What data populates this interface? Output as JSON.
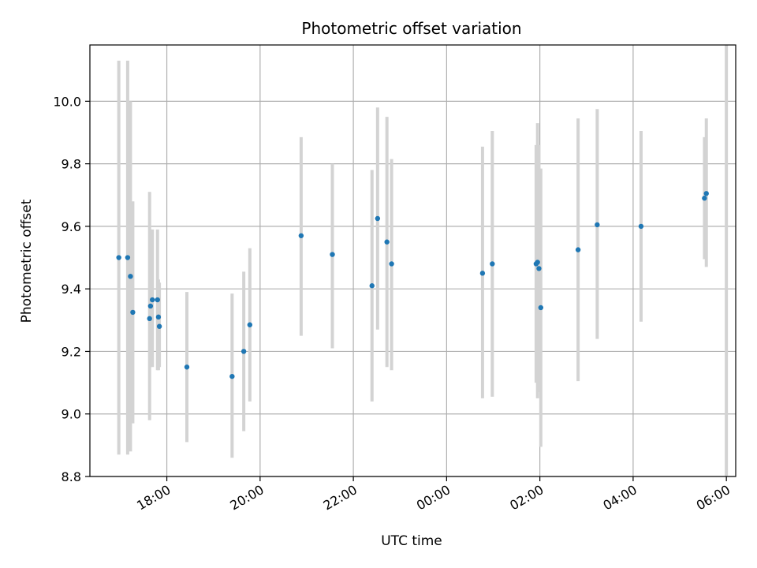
{
  "chart_data": {
    "type": "scatter",
    "title": "Photometric offset variation",
    "xlabel": "UTC time",
    "ylabel": "Photometric offset",
    "grid": true,
    "ylim": [
      8.8,
      10.18
    ],
    "xlim_hours": [
      16.35,
      30.2
    ],
    "yticks": [
      8.8,
      9.0,
      9.2,
      9.4,
      9.6,
      9.8,
      10.0
    ],
    "ytick_labels": [
      "8.8",
      "9.0",
      "9.2",
      "9.4",
      "9.6",
      "9.8",
      "10.0"
    ],
    "xticks": [
      18,
      20,
      22,
      24,
      26,
      28,
      30
    ],
    "xtick_labels": [
      "18:00",
      "20:00",
      "22:00",
      "00:00",
      "02:00",
      "04:00",
      "06:00"
    ],
    "colors": {
      "point": "#1f77b4",
      "errorbar": "#d3d3d3",
      "grid": "#b0b0b0"
    },
    "points": [
      {
        "x": 16.97,
        "y": 9.5,
        "lo": 8.87,
        "hi": 10.13
      },
      {
        "x": 17.16,
        "y": 9.5,
        "lo": 8.87,
        "hi": 10.13
      },
      {
        "x": 17.22,
        "y": 9.44,
        "lo": 8.88,
        "hi": 10.0
      },
      {
        "x": 17.27,
        "y": 9.325,
        "lo": 8.97,
        "hi": 9.68
      },
      {
        "x": 17.63,
        "y": 9.305,
        "lo": 8.98,
        "hi": 9.71
      },
      {
        "x": 17.65,
        "y": 9.345,
        "lo": 9.15,
        "hi": 9.59
      },
      {
        "x": 17.69,
        "y": 9.365,
        "lo": 9.15,
        "hi": 9.59
      },
      {
        "x": 17.8,
        "y": 9.365,
        "lo": 9.14,
        "hi": 9.59
      },
      {
        "x": 17.82,
        "y": 9.31,
        "lo": 9.14,
        "hi": 9.43
      },
      {
        "x": 17.84,
        "y": 9.28,
        "lo": 9.15,
        "hi": 9.42
      },
      {
        "x": 18.43,
        "y": 9.15,
        "lo": 8.91,
        "hi": 9.39
      },
      {
        "x": 19.4,
        "y": 9.12,
        "lo": 8.86,
        "hi": 9.385
      },
      {
        "x": 19.65,
        "y": 9.2,
        "lo": 8.945,
        "hi": 9.455
      },
      {
        "x": 19.78,
        "y": 9.285,
        "lo": 9.04,
        "hi": 9.53
      },
      {
        "x": 20.88,
        "y": 9.57,
        "lo": 9.25,
        "hi": 9.885
      },
      {
        "x": 21.55,
        "y": 9.51,
        "lo": 9.21,
        "hi": 9.8
      },
      {
        "x": 22.4,
        "y": 9.41,
        "lo": 9.04,
        "hi": 9.78
      },
      {
        "x": 22.52,
        "y": 9.625,
        "lo": 9.27,
        "hi": 9.98
      },
      {
        "x": 22.72,
        "y": 9.55,
        "lo": 9.15,
        "hi": 9.95
      },
      {
        "x": 22.82,
        "y": 9.48,
        "lo": 9.14,
        "hi": 9.815
      },
      {
        "x": 24.77,
        "y": 9.45,
        "lo": 9.05,
        "hi": 9.855
      },
      {
        "x": 24.98,
        "y": 9.48,
        "lo": 9.055,
        "hi": 9.905
      },
      {
        "x": 25.92,
        "y": 9.48,
        "lo": 9.1,
        "hi": 9.86
      },
      {
        "x": 25.95,
        "y": 9.485,
        "lo": 9.05,
        "hi": 9.93
      },
      {
        "x": 25.98,
        "y": 9.465,
        "lo": 9.07,
        "hi": 9.86
      },
      {
        "x": 26.02,
        "y": 9.34,
        "lo": 8.895,
        "hi": 9.785
      },
      {
        "x": 26.82,
        "y": 9.525,
        "lo": 9.105,
        "hi": 9.945
      },
      {
        "x": 27.23,
        "y": 9.605,
        "lo": 9.24,
        "hi": 9.975
      },
      {
        "x": 28.17,
        "y": 9.6,
        "lo": 9.295,
        "hi": 9.905
      },
      {
        "x": 29.53,
        "y": 9.69,
        "lo": 9.495,
        "hi": 9.885
      },
      {
        "x": 29.57,
        "y": 9.705,
        "lo": 9.47,
        "hi": 9.945
      },
      {
        "x": 30.0,
        "y": null,
        "lo": 8.8,
        "hi": 10.18
      }
    ]
  }
}
